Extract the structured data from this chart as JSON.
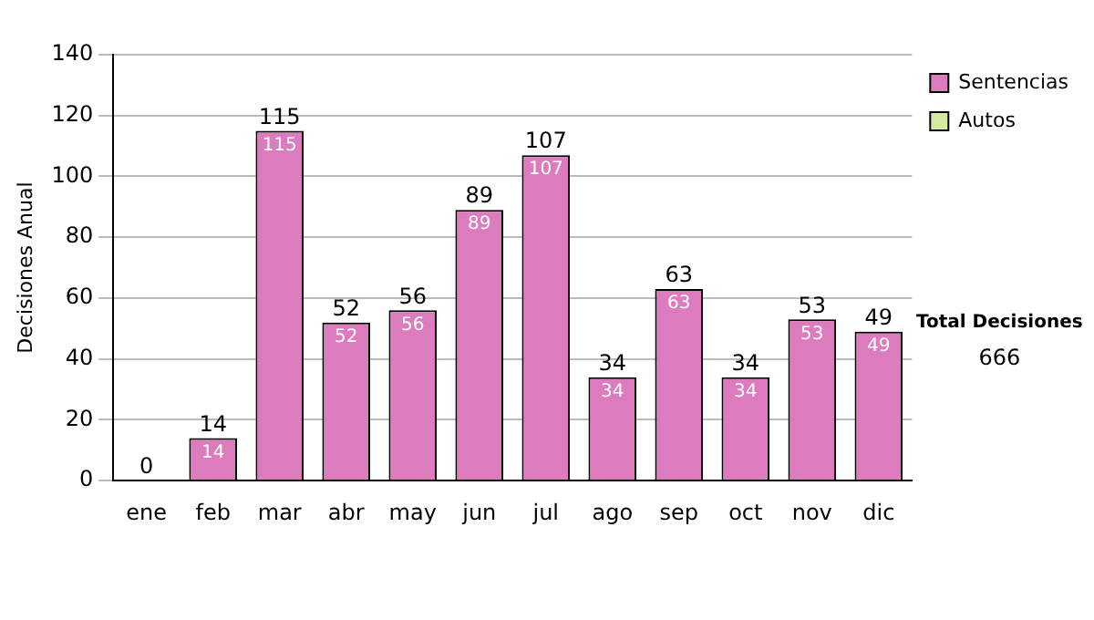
{
  "chart_data": {
    "type": "bar",
    "ylabel": "Decisiones Anual",
    "categories": [
      "ene",
      "feb",
      "mar",
      "abr",
      "may",
      "jun",
      "jul",
      "ago",
      "sep",
      "oct",
      "nov",
      "dic"
    ],
    "series": [
      {
        "name": "Sentencias",
        "color": "#dc7cbf",
        "values": [
          0,
          14,
          115,
          52,
          56,
          89,
          107,
          34,
          63,
          34,
          53,
          49
        ],
        "value_labels": [
          null,
          "14",
          "115",
          "52",
          "56",
          "89",
          "107",
          "34",
          "63",
          "34",
          "53",
          "49"
        ]
      },
      {
        "name": "Autos",
        "color": "#d4eaa0",
        "values": [
          0,
          0,
          0,
          0,
          0,
          0,
          0,
          0,
          0,
          0,
          0,
          0
        ]
      }
    ],
    "stacked": true,
    "totals": [
      "0",
      "14",
      "115",
      "52",
      "56",
      "89",
      "107",
      "34",
      "63",
      "34",
      "53",
      "49"
    ],
    "ylim": [
      0,
      140
    ],
    "yticks": [
      0,
      20,
      40,
      60,
      80,
      100,
      120,
      140
    ],
    "grid": "y",
    "legend": "right",
    "annotations": [
      "Total Decisiones",
      "666"
    ]
  }
}
